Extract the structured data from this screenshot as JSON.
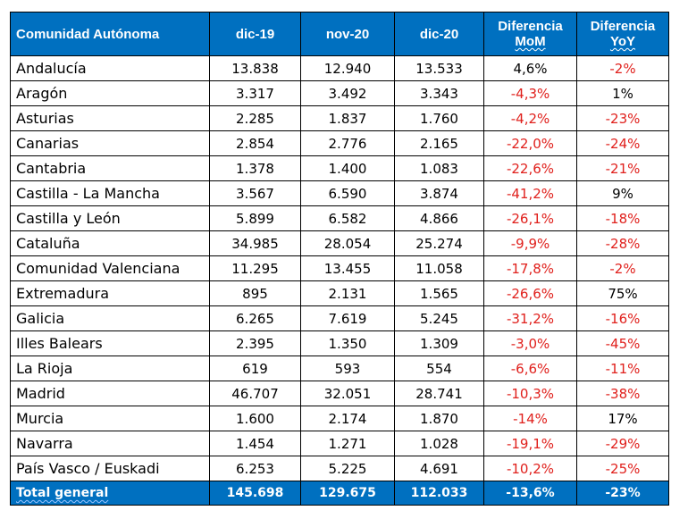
{
  "table": {
    "headers": {
      "region": "Comunidad Autónoma",
      "dic19": "dic-19",
      "nov20": "nov-20",
      "dic20": "dic-20",
      "mom_line1": "Diferencia",
      "mom_line2": "MoM",
      "yoy_line1": "Diferencia",
      "yoy_line2": "YoY"
    },
    "rows": [
      {
        "region": "Andalucía",
        "dic19": "13.838",
        "nov20": "12.940",
        "dic20": "13.533",
        "mom": "4,6%",
        "yoy": "-2%"
      },
      {
        "region": "Aragón",
        "dic19": "3.317",
        "nov20": "3.492",
        "dic20": "3.343",
        "mom": "-4,3%",
        "yoy": "1%"
      },
      {
        "region": "Asturias",
        "dic19": "2.285",
        "nov20": "1.837",
        "dic20": "1.760",
        "mom": "-4,2%",
        "yoy": "-23%"
      },
      {
        "region": "Canarias",
        "dic19": "2.854",
        "nov20": "2.776",
        "dic20": "2.165",
        "mom": "-22,0%",
        "yoy": "-24%"
      },
      {
        "region": "Cantabria",
        "dic19": "1.378",
        "nov20": "1.400",
        "dic20": "1.083",
        "mom": "-22,6%",
        "yoy": "-21%"
      },
      {
        "region": "Castilla - La Mancha",
        "dic19": "3.567",
        "nov20": "6.590",
        "dic20": "3.874",
        "mom": "-41,2%",
        "yoy": "9%"
      },
      {
        "region": "Castilla y León",
        "dic19": "5.899",
        "nov20": "6.582",
        "dic20": "4.866",
        "mom": "-26,1%",
        "yoy": "-18%"
      },
      {
        "region": "Cataluña",
        "dic19": "34.985",
        "nov20": "28.054",
        "dic20": "25.274",
        "mom": "-9,9%",
        "yoy": "-28%"
      },
      {
        "region": "Comunidad Valenciana",
        "dic19": "11.295",
        "nov20": "13.455",
        "dic20": "11.058",
        "mom": "-17,8%",
        "yoy": "-2%"
      },
      {
        "region": "Extremadura",
        "dic19": "895",
        "nov20": "2.131",
        "dic20": "1.565",
        "mom": "-26,6%",
        "yoy": "75%"
      },
      {
        "region": "Galicia",
        "dic19": "6.265",
        "nov20": "7.619",
        "dic20": "5.245",
        "mom": "-31,2%",
        "yoy": "-16%"
      },
      {
        "region": "Illes Balears",
        "dic19": "2.395",
        "nov20": "1.350",
        "dic20": "1.309",
        "mom": "-3,0%",
        "yoy": "-45%"
      },
      {
        "region": "La Rioja",
        "dic19": "619",
        "nov20": "593",
        "dic20": "554",
        "mom": "-6,6%",
        "yoy": "-11%"
      },
      {
        "region": "Madrid",
        "dic19": "46.707",
        "nov20": "32.051",
        "dic20": "28.741",
        "mom": "-10,3%",
        "yoy": "-38%"
      },
      {
        "region": "Murcia",
        "dic19": "1.600",
        "nov20": "2.174",
        "dic20": "1.870",
        "mom": "-14%",
        "yoy": "17%"
      },
      {
        "region": "Navarra",
        "dic19": "1.454",
        "nov20": "1.271",
        "dic20": "1.028",
        "mom": "-19,1%",
        "yoy": "-29%"
      },
      {
        "region": "País Vasco / Euskadi",
        "dic19": "6.253",
        "nov20": "5.225",
        "dic20": "4.691",
        "mom": "-10,2%",
        "yoy": "-25%"
      }
    ],
    "total": {
      "region": "Total general",
      "dic19": "145.698",
      "nov20": "129.675",
      "dic20": "112.033",
      "mom": "-13,6%",
      "yoy": "-23%"
    }
  },
  "colors": {
    "header_bg": "#0070c0",
    "header_text": "#ffffff",
    "negative_text": "#e0201c",
    "positive_text": "#000000"
  }
}
